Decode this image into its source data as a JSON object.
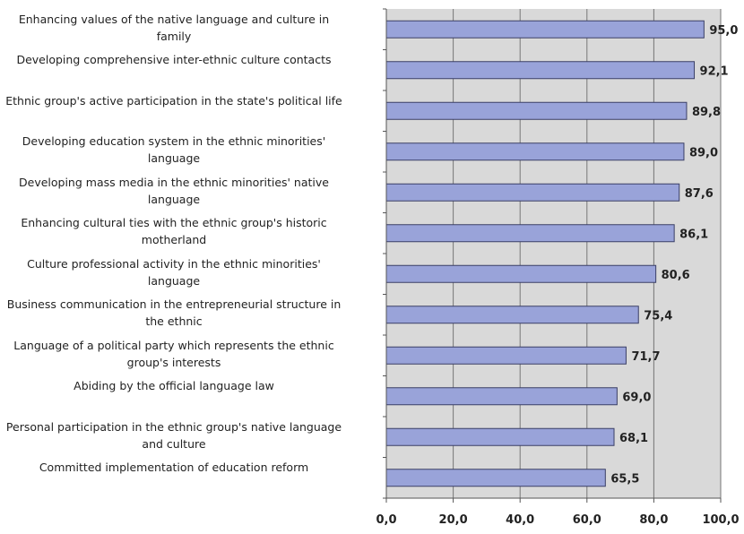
{
  "chart_data": {
    "type": "bar",
    "orientation": "horizontal",
    "categories": [
      "Enhancing  values of the native language and culture in family",
      "Developing comprehensive inter-ethnic culture contacts",
      "Ethnic group's active participation in the state's political life",
      "Developing education system in the ethnic minorities' language",
      "Developing mass media in the ethnic minorities' native language",
      "Enhancing cultural ties with the ethnic group's historic motherland",
      "Culture professional activity in the ethnic minorities' language",
      "Business communication in the entrepreneurial structure in the ethnic",
      "Language of a political party which represents the ethnic group's  interests",
      "Abiding by the official language law",
      "Personal participation in the ethnic group's native language and culture",
      "Committed implementation of  education reform"
    ],
    "values": [
      95.0,
      92.1,
      89.8,
      89.0,
      87.6,
      86.1,
      80.6,
      75.4,
      71.7,
      69.0,
      68.1,
      65.5
    ],
    "value_labels": [
      "95,0",
      "92,1",
      "89,8",
      "89,0",
      "87,6",
      "86,1",
      "80,6",
      "75,4",
      "71,7",
      "69,0",
      "68,1",
      "65,5"
    ],
    "x_ticks": [
      "0,0",
      "20,0",
      "40,0",
      "60,0",
      "80,0",
      "100,0"
    ],
    "xlim": [
      0,
      100
    ],
    "grid": true,
    "legend": "none",
    "bar_color": "#99a3d9",
    "plot_bg": "#d9d9d9"
  }
}
